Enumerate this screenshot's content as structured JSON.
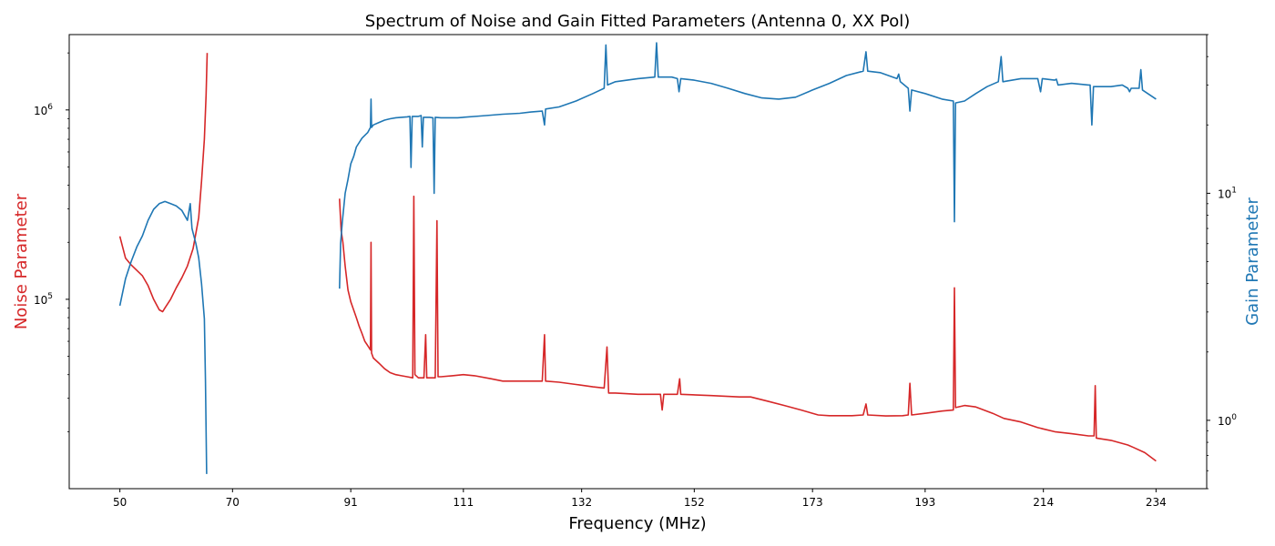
{
  "chart_data": {
    "type": "line",
    "title": "Spectrum of Noise and Gain Fitted Parameters (Antenna 0, XX Pol)",
    "xlabel": "Frequency (MHz)",
    "ylabel_left": "Noise Parameter",
    "ylabel_right": "Gain Parameter",
    "xlim": [
      41,
      243
    ],
    "x_ticks": [
      "50",
      "70",
      "91",
      "111",
      "132",
      "152",
      "173",
      "193",
      "214",
      "234"
    ],
    "y_left": {
      "scale": "log",
      "lim": [
        10000,
        2500000
      ],
      "tick_labels": [
        "10^5",
        "10^6"
      ]
    },
    "y_right": {
      "scale": "log",
      "lim": [
        0.5,
        50
      ],
      "tick_labels": [
        "10^0",
        "10^1"
      ]
    },
    "grid": false,
    "colors": {
      "noise": "#d62728",
      "gain": "#1f77b4"
    },
    "series": [
      {
        "role": "noise",
        "axis": "left",
        "segments": [
          [
            [
              50,
              215000
            ],
            [
              51,
              165000
            ],
            [
              52,
              152000
            ],
            [
              54,
              133000
            ],
            [
              55,
              118000
            ],
            [
              56,
              100000
            ],
            [
              57,
              88000
            ],
            [
              57.6,
              86000
            ],
            [
              58,
              90000
            ],
            [
              59,
              100000
            ],
            [
              60,
              115000
            ],
            [
              61,
              130000
            ],
            [
              62,
              150000
            ],
            [
              63,
              185000
            ],
            [
              64,
              270000
            ],
            [
              64.5,
              420000
            ],
            [
              65,
              700000
            ],
            [
              65.3,
              1200000
            ],
            [
              65.5,
              2000000
            ]
          ],
          [
            [
              89,
              340000
            ],
            [
              89.3,
              230000
            ],
            [
              89.6,
              200000
            ],
            [
              90,
              150000
            ],
            [
              90.5,
              112000
            ],
            [
              91,
              97000
            ],
            [
              91.5,
              88000
            ],
            [
              92,
              80000
            ],
            [
              92.5,
              72000
            ],
            [
              93,
              66000
            ],
            [
              93.5,
              60000
            ],
            [
              94,
              57000
            ],
            [
              94.5,
              54000
            ],
            [
              94.6,
              200000
            ],
            [
              94.7,
              52000
            ],
            [
              95,
              49000
            ],
            [
              96,
              46000
            ],
            [
              97,
              43000
            ],
            [
              98,
              41000
            ],
            [
              99,
              40000
            ],
            [
              100,
              39500
            ],
            [
              101,
              39000
            ],
            [
              102,
              38500
            ],
            [
              102.2,
              350000
            ],
            [
              102.4,
              40000
            ],
            [
              103,
              38500
            ],
            [
              104,
              38500
            ],
            [
              104.3,
              65000
            ],
            [
              104.5,
              38500
            ],
            [
              105,
              38500
            ],
            [
              106,
              38500
            ],
            [
              106.3,
              260000
            ],
            [
              106.5,
              39000
            ],
            [
              107,
              39000
            ],
            [
              109,
              39500
            ],
            [
              111,
              40000
            ],
            [
              113,
              39500
            ],
            [
              116,
              38000
            ],
            [
              118,
              37000
            ],
            [
              121,
              37000
            ],
            [
              125,
              37000
            ],
            [
              125.4,
              65000
            ],
            [
              125.6,
              37000
            ],
            [
              128,
              36500
            ],
            [
              131,
              35500
            ],
            [
              134,
              34500
            ],
            [
              136,
              34000
            ],
            [
              136.5,
              56000
            ],
            [
              136.8,
              32000
            ],
            [
              138,
              32000
            ],
            [
              142,
              31500
            ],
            [
              146,
              31500
            ],
            [
              146.3,
              26000
            ],
            [
              146.6,
              31500
            ],
            [
              149,
              31500
            ],
            [
              149.4,
              38000
            ],
            [
              149.6,
              31500
            ],
            [
              155,
              31000
            ],
            [
              160,
              30500
            ],
            [
              162,
              30500
            ],
            [
              165,
              29000
            ],
            [
              168,
              27500
            ],
            [
              171,
              26000
            ],
            [
              174,
              24500
            ],
            [
              176,
              24300
            ],
            [
              180,
              24300
            ],
            [
              182,
              24500
            ],
            [
              182.5,
              28000
            ],
            [
              182.8,
              24500
            ],
            [
              186,
              24200
            ],
            [
              189,
              24300
            ],
            [
              190,
              24500
            ],
            [
              190.3,
              36000
            ],
            [
              190.6,
              24500
            ],
            [
              193,
              25000
            ],
            [
              196,
              25700
            ],
            [
              198,
              26000
            ],
            [
              198.2,
              115000
            ],
            [
              198.4,
              26800
            ],
            [
              200,
              27500
            ],
            [
              202,
              27000
            ],
            [
              205,
              25000
            ],
            [
              207,
              23500
            ],
            [
              210,
              22500
            ],
            [
              213,
              21000
            ],
            [
              216,
              20000
            ],
            [
              219,
              19500
            ],
            [
              222,
              19000
            ],
            [
              223,
              19000
            ],
            [
              223.2,
              35000
            ],
            [
              223.4,
              18500
            ],
            [
              226,
              18000
            ],
            [
              229,
              17000
            ],
            [
              230,
              16500
            ],
            [
              232,
              15500
            ],
            [
              234,
              14000
            ]
          ]
        ]
      },
      {
        "role": "gain",
        "axis": "right",
        "segments": [
          [
            [
              50,
              3.2
            ],
            [
              51,
              4.2
            ],
            [
              52,
              5.0
            ],
            [
              53,
              5.8
            ],
            [
              54,
              6.5
            ],
            [
              55,
              7.6
            ],
            [
              56,
              8.5
            ],
            [
              57,
              9.0
            ],
            [
              58,
              9.2
            ],
            [
              59,
              9.0
            ],
            [
              60,
              8.8
            ],
            [
              61,
              8.4
            ],
            [
              62,
              7.6
            ],
            [
              62.5,
              9.0
            ],
            [
              62.8,
              7.0
            ],
            [
              63,
              6.7
            ],
            [
              63.5,
              6.0
            ],
            [
              64,
              5.2
            ],
            [
              64.5,
              4.0
            ],
            [
              65,
              2.8
            ],
            [
              65.2,
              1.5
            ],
            [
              65.4,
              0.58
            ]
          ],
          [
            [
              89,
              3.8
            ],
            [
              89.2,
              6.0
            ],
            [
              89.5,
              7.5
            ],
            [
              90,
              10.0
            ],
            [
              90.5,
              11.5
            ],
            [
              91,
              13.5
            ],
            [
              91.5,
              14.5
            ],
            [
              92,
              16.0
            ],
            [
              93,
              17.5
            ],
            [
              94,
              18.5
            ],
            [
              94.5,
              19.5
            ],
            [
              94.6,
              26.0
            ],
            [
              94.7,
              19.5
            ],
            [
              95,
              20.0
            ],
            [
              96,
              20.5
            ],
            [
              97,
              21.0
            ],
            [
              98,
              21.3
            ],
            [
              99,
              21.5
            ],
            [
              100,
              21.6
            ],
            [
              101,
              21.7
            ],
            [
              101.5,
              21.8
            ],
            [
              101.7,
              13.0
            ],
            [
              101.9,
              21.8
            ],
            [
              103,
              21.8
            ],
            [
              103.5,
              22.0
            ],
            [
              103.7,
              16.0
            ],
            [
              103.9,
              21.6
            ],
            [
              105,
              21.6
            ],
            [
              105.6,
              21.5
            ],
            [
              105.8,
              10.0
            ],
            [
              106,
              21.6
            ],
            [
              107,
              21.5
            ],
            [
              110,
              21.5
            ],
            [
              115,
              22.0
            ],
            [
              118,
              22.3
            ],
            [
              121,
              22.5
            ],
            [
              123,
              22.8
            ],
            [
              125,
              23.0
            ],
            [
              125.4,
              20.0
            ],
            [
              125.6,
              23.5
            ],
            [
              128,
              24.0
            ],
            [
              131,
              25.5
            ],
            [
              134,
              27.5
            ],
            [
              136,
              29.0
            ],
            [
              136.3,
              45.0
            ],
            [
              136.6,
              30.0
            ],
            [
              138,
              31.0
            ],
            [
              142,
              32.0
            ],
            [
              145,
              32.5
            ],
            [
              145.3,
              46.0
            ],
            [
              145.6,
              32.5
            ],
            [
              148,
              32.5
            ],
            [
              149,
              32.0
            ],
            [
              149.3,
              28.0
            ],
            [
              149.6,
              32.0
            ],
            [
              152,
              31.5
            ],
            [
              155,
              30.5
            ],
            [
              158,
              29.0
            ],
            [
              161,
              27.5
            ],
            [
              164,
              26.3
            ],
            [
              167,
              26.0
            ],
            [
              170,
              26.5
            ],
            [
              173,
              28.5
            ],
            [
              176,
              30.5
            ],
            [
              179,
              33.0
            ],
            [
              182,
              34.5
            ],
            [
              182.5,
              42.0
            ],
            [
              182.8,
              34.5
            ],
            [
              185,
              34.0
            ],
            [
              188,
              32.0
            ],
            [
              188.3,
              33.5
            ],
            [
              188.6,
              31.0
            ],
            [
              190,
              29.0
            ],
            [
              190.3,
              23.0
            ],
            [
              190.6,
              28.5
            ],
            [
              193,
              27.5
            ],
            [
              196,
              26.0
            ],
            [
              198,
              25.5
            ],
            [
              198.2,
              7.5
            ],
            [
              198.4,
              25.0
            ],
            [
              200,
              25.5
            ],
            [
              202,
              27.5
            ],
            [
              204,
              29.5
            ],
            [
              206,
              31.0
            ],
            [
              206.5,
              40.0
            ],
            [
              206.8,
              31.0
            ],
            [
              210,
              32.0
            ],
            [
              213,
              32.0
            ],
            [
              213.5,
              28.0
            ],
            [
              213.8,
              32.0
            ],
            [
              216,
              31.5
            ],
            [
              216.3,
              31.8
            ],
            [
              216.6,
              30.0
            ],
            [
              219,
              30.5
            ],
            [
              222,
              30.0
            ],
            [
              222.3,
              30.0
            ],
            [
              222.6,
              20.0
            ],
            [
              222.9,
              29.5
            ],
            [
              226,
              29.5
            ],
            [
              228,
              30.0
            ],
            [
              229,
              29.0
            ],
            [
              229.3,
              28.0
            ],
            [
              229.6,
              29.0
            ],
            [
              231,
              29.0
            ],
            [
              231.3,
              35.0
            ],
            [
              231.6,
              28.5
            ],
            [
              234,
              26.0
            ]
          ]
        ]
      }
    ]
  }
}
